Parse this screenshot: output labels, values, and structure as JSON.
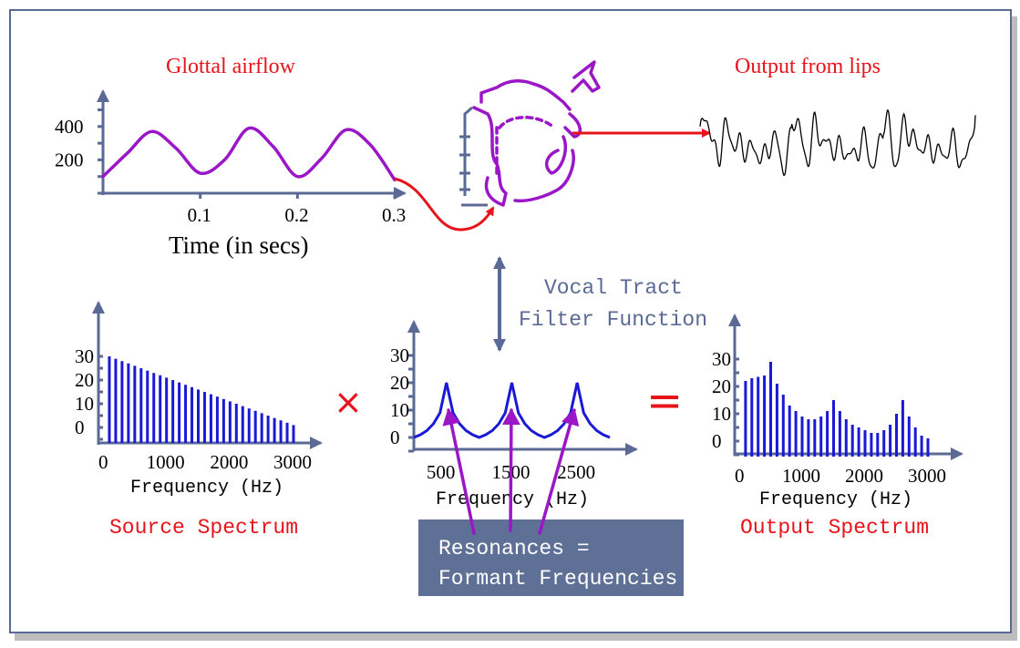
{
  "titles": {
    "glottal": "Glottal airflow",
    "output_lips": "Output from lips",
    "vocal_tract_1": "Vocal Tract",
    "vocal_tract_2": "Filter Function",
    "source_spectrum": "Source Spectrum",
    "output_spectrum": "Output Spectrum",
    "resonances_1": "Resonances =",
    "resonances_2": "Formant Frequencies"
  },
  "operators": {
    "times": "×",
    "equals": "="
  },
  "colors": {
    "red": "#e8141c",
    "slate": "#5a6a94",
    "purple": "#9a16c7",
    "blue": "#1a1ad6"
  },
  "chart_data": [
    {
      "type": "line",
      "name": "glottal-airflow",
      "x_ticks": [
        "0.1",
        "0.2",
        "0.3"
      ],
      "y_ticks": [
        "400",
        "200"
      ],
      "xlabel": "Time (in secs)",
      "xlim": [
        0,
        0.3
      ],
      "ylim": [
        0,
        600
      ],
      "x": [
        0,
        0.025,
        0.05,
        0.075,
        0.1,
        0.125,
        0.15,
        0.175,
        0.2,
        0.225,
        0.25,
        0.275,
        0.3
      ],
      "y": [
        100,
        240,
        370,
        270,
        120,
        200,
        390,
        280,
        100,
        210,
        380,
        290,
        80
      ]
    },
    {
      "type": "bar",
      "name": "source-spectrum",
      "x_ticks": [
        "0",
        "1000",
        "2000",
        "3000"
      ],
      "y_ticks": [
        "30",
        "20",
        "10",
        "0"
      ],
      "xlabel": "Frequency (Hz)",
      "xlim": [
        0,
        3000
      ],
      "ylim": [
        -5,
        35
      ],
      "x": [
        100,
        200,
        300,
        400,
        500,
        600,
        700,
        800,
        900,
        1000,
        1100,
        1200,
        1300,
        1400,
        1500,
        1600,
        1700,
        1800,
        1900,
        2000,
        2100,
        2200,
        2300,
        2400,
        2500,
        2600,
        2700,
        2800,
        2900,
        3000
      ],
      "values": [
        30,
        29,
        28,
        27,
        26,
        25,
        24,
        23,
        22,
        21,
        20,
        19,
        18,
        17,
        16,
        15,
        14,
        13,
        12,
        11,
        10,
        9,
        8,
        7,
        6,
        5,
        4,
        3,
        2,
        1
      ]
    },
    {
      "type": "line",
      "name": "vocal-tract-filter",
      "x_ticks": [
        "500",
        "1500",
        "2500"
      ],
      "y_ticks": [
        "30",
        "20",
        "10",
        "0"
      ],
      "xlabel": "Frequency (Hz)",
      "xlim": [
        0,
        3000
      ],
      "ylim": [
        -5,
        35
      ],
      "x": [
        0,
        100,
        200,
        300,
        400,
        500,
        600,
        700,
        800,
        900,
        1000,
        1100,
        1200,
        1300,
        1400,
        1500,
        1600,
        1700,
        1800,
        1900,
        2000,
        2100,
        2200,
        2300,
        2400,
        2500,
        2600,
        2700,
        2800,
        2900,
        3000
      ],
      "y": [
        0,
        1,
        2.5,
        5,
        9,
        20,
        9,
        5,
        2.5,
        1,
        0,
        1,
        2.5,
        5,
        9,
        20,
        9,
        5,
        2.5,
        1,
        0,
        1,
        2.5,
        5,
        9,
        20,
        9,
        5,
        2.5,
        1,
        0
      ]
    },
    {
      "type": "bar",
      "name": "output-spectrum",
      "x_ticks": [
        "0",
        "1000",
        "2000",
        "3000"
      ],
      "y_ticks": [
        "30",
        "20",
        "10",
        "0"
      ],
      "xlabel": "Frequency (Hz)",
      "xlim": [
        0,
        3000
      ],
      "ylim": [
        -5,
        35
      ],
      "x": [
        100,
        200,
        300,
        400,
        500,
        600,
        700,
        800,
        900,
        1000,
        1100,
        1200,
        1300,
        1400,
        1500,
        1600,
        1700,
        1800,
        1900,
        2000,
        2100,
        2200,
        2300,
        2400,
        2500,
        2600,
        2700,
        2800,
        2900,
        3000
      ],
      "values": [
        22,
        23,
        23.5,
        24,
        29,
        21,
        17,
        13,
        11,
        9,
        8,
        8,
        9,
        11,
        15,
        11,
        8,
        6,
        5,
        4,
        3,
        3,
        4,
        6,
        10,
        15,
        9,
        5,
        2,
        1
      ]
    }
  ]
}
